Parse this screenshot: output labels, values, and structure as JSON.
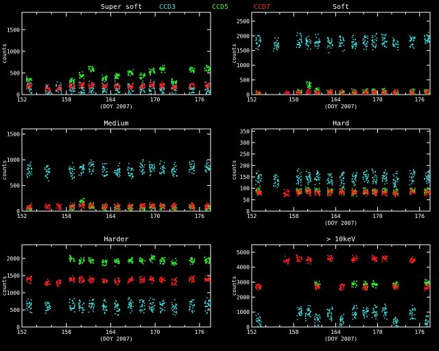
{
  "figure": {
    "header": {
      "title": "Super soft",
      "legend": [
        {
          "name": "CCD3",
          "color": "#40e0e0"
        },
        {
          "name": "CCD5",
          "color": "#33ee33"
        },
        {
          "name": "CCD7",
          "color": "#ff2222"
        }
      ]
    },
    "x_ticks": [
      "152",
      "158",
      "164",
      "170",
      "176"
    ]
  },
  "chart_data": [
    {
      "type": "scatter",
      "title": "Super soft",
      "xlabel": "(DOY 2007)",
      "ylabel": "counts",
      "xlim": [
        152,
        177.5
      ],
      "ylim": [
        0,
        1900
      ],
      "y_ticks": [
        0,
        500,
        1000,
        1500
      ],
      "series": [
        {
          "name": "CCD3",
          "color": "#40e0e0",
          "values": [
            150,
            80,
            150,
            150,
            150,
            150,
            150,
            150,
            150,
            150,
            150,
            150,
            150,
            150,
            150
          ]
        },
        {
          "name": "CCD5",
          "color": "#33ee33",
          "values": [
            350,
            0,
            0,
            330,
            450,
            600,
            400,
            450,
            500,
            450,
            550,
            600,
            300,
            580,
            600
          ]
        },
        {
          "name": "CCD7",
          "color": "#ff2222",
          "values": [
            200,
            150,
            170,
            210,
            240,
            230,
            200,
            200,
            190,
            200,
            220,
            230,
            200,
            200,
            210
          ]
        }
      ]
    },
    {
      "type": "scatter",
      "title": "Soft",
      "xlabel": "(DOY 2007)",
      "ylabel": "counts",
      "xlim": [
        152,
        177.5
      ],
      "ylim": [
        0,
        2800
      ],
      "y_ticks": [
        0,
        500,
        1000,
        1500,
        2000,
        2500
      ],
      "series": [
        {
          "name": "CCD3",
          "color": "#40e0e0",
          "values": [
            1800,
            1700,
            0,
            1850,
            1800,
            1800,
            1750,
            1750,
            1800,
            1800,
            1850,
            1850,
            1800,
            1850,
            1850
          ]
        },
        {
          "name": "CCD5",
          "color": "#33ee33",
          "values": [
            50,
            0,
            0,
            100,
            350,
            150,
            100,
            100,
            80,
            100,
            100,
            120,
            80,
            100,
            100
          ]
        },
        {
          "name": "CCD7",
          "color": "#ff2222",
          "values": [
            60,
            0,
            40,
            80,
            80,
            80,
            70,
            70,
            60,
            70,
            80,
            70,
            60,
            70,
            70
          ]
        }
      ]
    },
    {
      "type": "scatter",
      "title": "Medium",
      "xlabel": "",
      "ylabel": "counts",
      "xlim": [
        152,
        177.5
      ],
      "ylim": [
        0,
        1600
      ],
      "y_ticks": [
        0,
        500,
        1000,
        1500
      ],
      "series": [
        {
          "name": "CCD3",
          "color": "#40e0e0",
          "values": [
            800,
            750,
            0,
            800,
            850,
            850,
            800,
            800,
            800,
            850,
            850,
            850,
            800,
            850,
            850
          ]
        },
        {
          "name": "CCD5",
          "color": "#33ee33",
          "values": [
            60,
            0,
            0,
            80,
            200,
            100,
            80,
            80,
            70,
            80,
            100,
            100,
            70,
            90,
            90
          ]
        },
        {
          "name": "CCD7",
          "color": "#ff2222",
          "values": [
            100,
            90,
            90,
            110,
            110,
            110,
            100,
            100,
            100,
            100,
            110,
            110,
            100,
            110,
            110
          ]
        }
      ]
    },
    {
      "type": "scatter",
      "title": "Hard",
      "xlabel": "(DOY 2007)",
      "ylabel": "counts",
      "xlim": [
        152,
        177.5
      ],
      "ylim": [
        0,
        360
      ],
      "y_ticks": [
        0,
        50,
        100,
        150,
        200,
        250,
        300,
        350
      ],
      "series": [
        {
          "name": "CCD3",
          "color": "#40e0e0",
          "values": [
            150,
            140,
            0,
            150,
            150,
            150,
            140,
            140,
            150,
            150,
            150,
            150,
            140,
            150,
            150
          ]
        },
        {
          "name": "CCD5",
          "color": "#33ee33",
          "values": [
            90,
            0,
            0,
            90,
            95,
            90,
            90,
            90,
            85,
            90,
            90,
            90,
            85,
            90,
            90
          ]
        },
        {
          "name": "CCD7",
          "color": "#ff2222",
          "values": [
            85,
            0,
            80,
            85,
            85,
            85,
            85,
            85,
            85,
            85,
            85,
            85,
            80,
            85,
            85
          ]
        }
      ]
    },
    {
      "type": "scatter",
      "title": "Harder",
      "xlabel": "(DOY 2007)",
      "ylabel": "counts",
      "xlim": [
        152,
        177.5
      ],
      "ylim": [
        0,
        2400
      ],
      "y_ticks": [
        0,
        500,
        1000,
        1500,
        2000
      ],
      "series": [
        {
          "name": "CCD3",
          "color": "#40e0e0",
          "values": [
            650,
            600,
            0,
            650,
            650,
            650,
            600,
            600,
            650,
            650,
            650,
            650,
            600,
            650,
            650
          ]
        },
        {
          "name": "CCD5",
          "color": "#33ee33",
          "values": [
            0,
            0,
            0,
            2000,
            1950,
            1950,
            1900,
            1900,
            1950,
            1950,
            2000,
            1950,
            1900,
            1950,
            1950
          ]
        },
        {
          "name": "CCD7",
          "color": "#ff2222",
          "values": [
            1400,
            1300,
            1300,
            1400,
            1400,
            1400,
            1350,
            1350,
            1400,
            1400,
            1400,
            1400,
            1350,
            1400,
            1400
          ]
        }
      ]
    },
    {
      "type": "scatter",
      "title": "> 10keV",
      "xlabel": "(DOY 2007)",
      "ylabel": "counts",
      "xlim": [
        152,
        177.5
      ],
      "ylim": [
        0,
        5500
      ],
      "y_ticks": [
        0,
        1000,
        2000,
        3000,
        4000,
        5000
      ],
      "series": [
        {
          "name": "CCD3",
          "color": "#40e0e0",
          "values": [
            400,
            0,
            0,
            1000,
            1000,
            400,
            1000,
            400,
            1000,
            1000,
            1000,
            1000,
            400,
            1000,
            400
          ]
        },
        {
          "name": "CCD5",
          "color": "#33ee33",
          "values": [
            0,
            0,
            0,
            0,
            0,
            2900,
            0,
            0,
            2900,
            2900,
            2900,
            0,
            2900,
            0,
            3000
          ]
        },
        {
          "name": "CCD7",
          "color": "#ff2222",
          "values": [
            2700,
            0,
            4500,
            4600,
            4500,
            2700,
            4600,
            2700,
            4600,
            2700,
            4600,
            4600,
            2700,
            4500,
            2700
          ]
        }
      ]
    }
  ]
}
